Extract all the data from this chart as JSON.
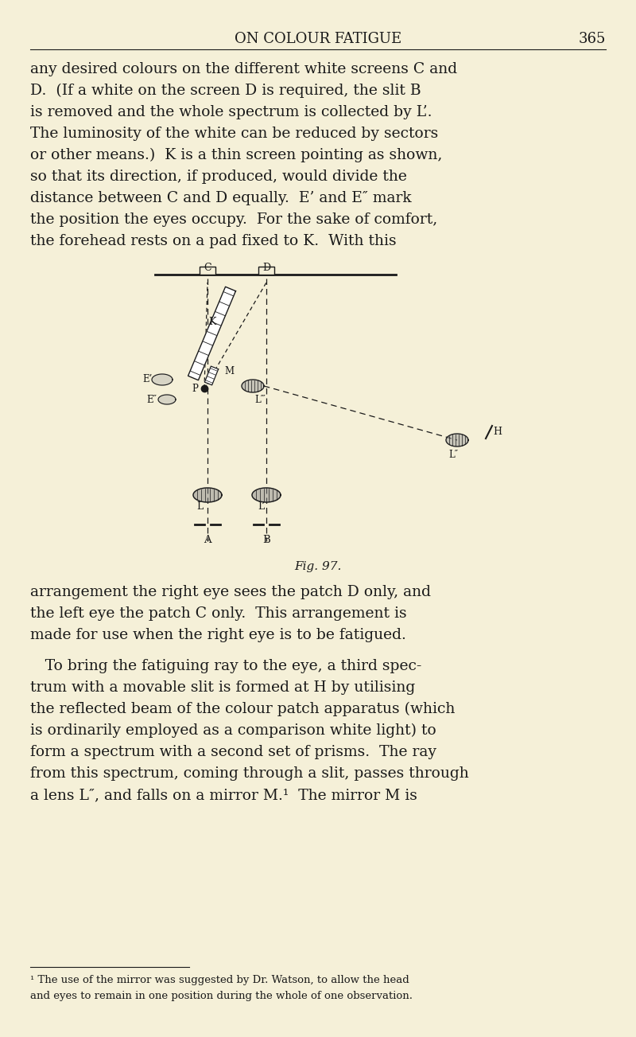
{
  "bg_color": "#f5f0d8",
  "text_color": "#1a1a1a",
  "page_width": 8.0,
  "page_height": 13.03,
  "dpi": 100,
  "header_title": "ON COLOUR FATIGUE",
  "header_page": "365",
  "para1": "any desired colours on the different white screens C and\nD.  (If a white on the screen D is required, the slit B\nis removed and the whole spectrum is collected by L’.\nThe luminosity of the white can be reduced by sectors\nor other means.)  K is a thin screen pointing as shown,\nso that its direction, if produced, would divide the\ndistance between C and D equally.  E’ and E″ mark\nthe position the eyes occupy.  For the sake of comfort,\nthe forehead rests on a pad fixed to K.  With this",
  "fig_caption": "Fig. 97.",
  "para2": "arrangement the right eye sees the patch D only, and\nthe left eye the patch C only.  This arrangement is\nmade for use when the right eye is to be fatigued.",
  "para3_indent": "To bring the fatiguing ray to the eye, a third spec-\ntrum with a movable slit is formed at H by utilising\nthe reflected beam of the colour patch apparatus (which\nis ordinarily employed as a comparison white light) to\nform a spectrum with a second set of prisms.  The ray\nfrom this spectrum, coming through a slit, passes through\na lens L″, and falls on a mirror M.¹  The mirror M is",
  "footnote": "¹ The use of the mirror was suggested by Dr. Watson, to allow the head\nand eyes to remain in one position during the whole of one observation."
}
